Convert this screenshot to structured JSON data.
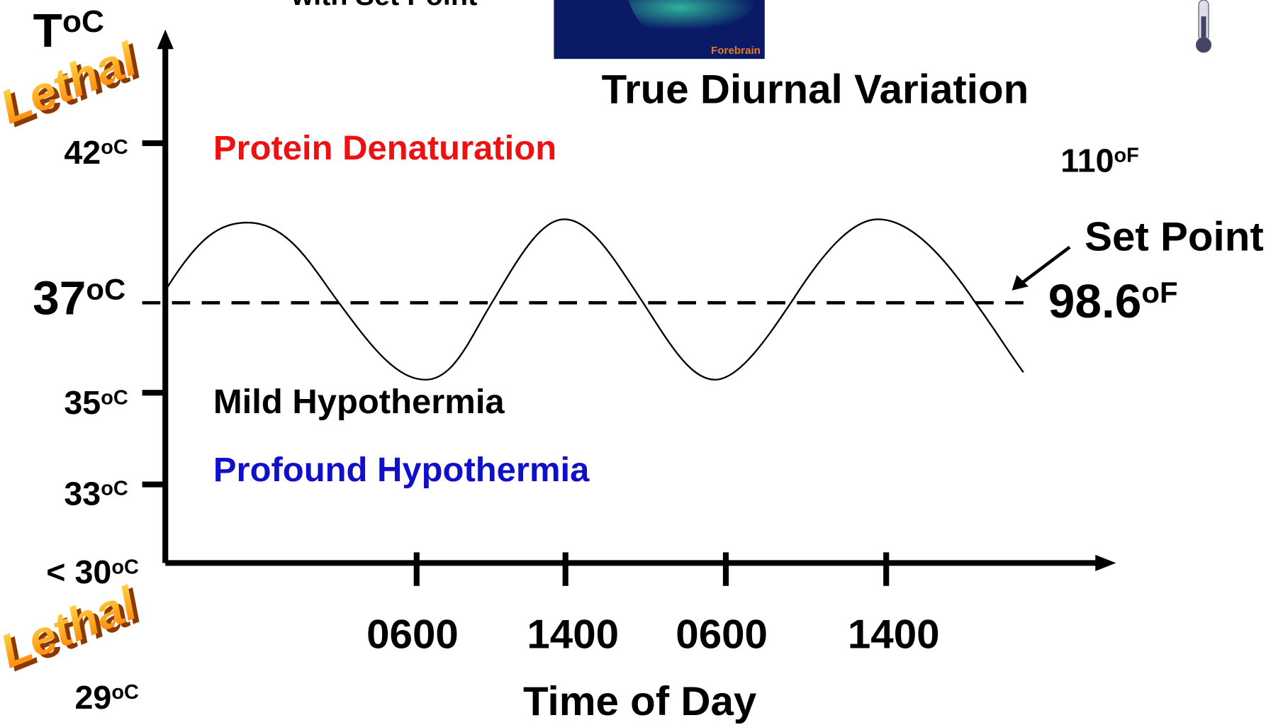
{
  "title_fragment": "with Set Point",
  "image_label": "Forebrain",
  "heading": "True Diurnal Variation",
  "y_axis": {
    "symbol": "T",
    "unit": "oC"
  },
  "lethal_high": "Lethal",
  "lethal_low": "Lethal",
  "temperatures": [
    {
      "value": "42",
      "unit": "oC"
    },
    {
      "value": "37",
      "unit": "oC"
    },
    {
      "value": "35",
      "unit": "oC"
    },
    {
      "value": "33",
      "unit": "oC"
    },
    {
      "value": "< 30",
      "unit": "oC"
    }
  ],
  "lethal_low_temp": {
    "value": "29",
    "unit": "oC"
  },
  "zones": [
    "Protein Denaturation",
    "Mild Hypothermia",
    "Profound Hypothermia"
  ],
  "fahrenheit_high": {
    "value": "110",
    "unit": "oF"
  },
  "set_point": {
    "label": "Set Point",
    "value": "98.6",
    "unit": "oF"
  },
  "x_ticks": [
    "0600",
    "1400",
    "0600",
    "1400"
  ],
  "x_axis_label": "Time of Day"
}
